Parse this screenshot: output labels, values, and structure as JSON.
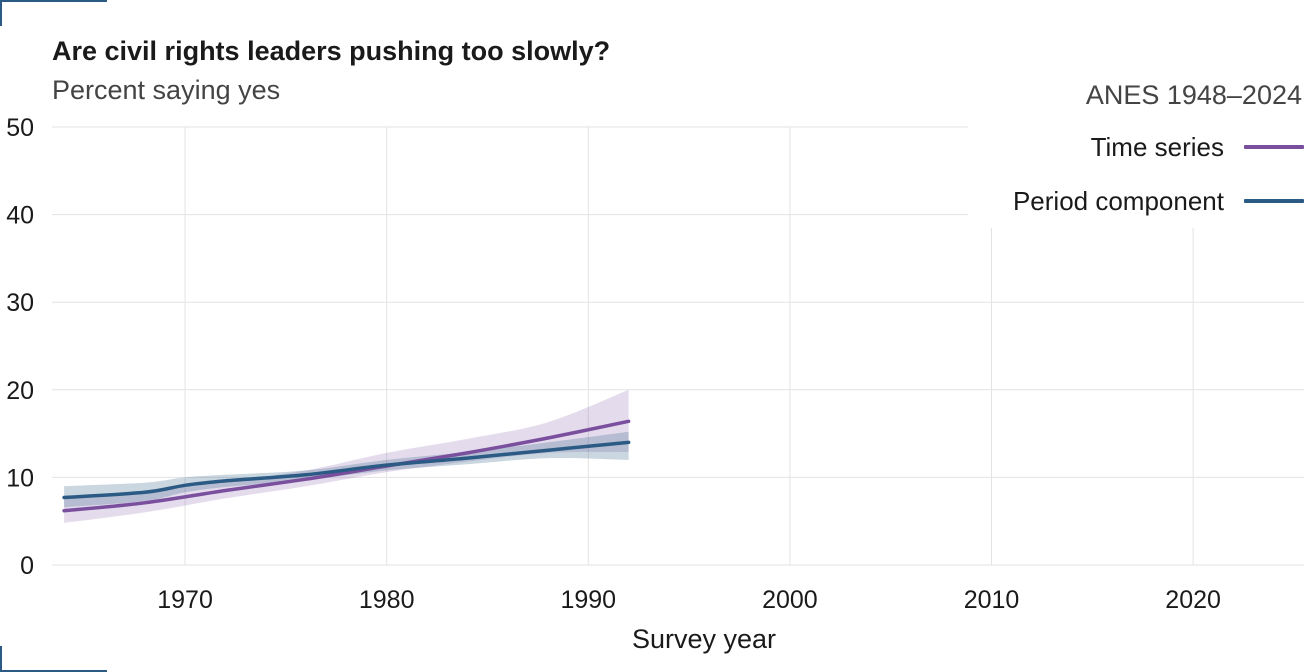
{
  "header": {
    "title": "Are civil rights leaders pushing too slowly?",
    "subtitle": "Percent saying yes"
  },
  "legend": {
    "title": "ANES 1948–2024",
    "items": [
      {
        "label": "Time series",
        "color": "#7a4f9e"
      },
      {
        "label": "Period component",
        "color": "#2b5b84"
      }
    ]
  },
  "chart_data": {
    "type": "line",
    "xlabel": "Survey year",
    "ylabel": "",
    "xlim": [
      1963.4,
      2025.5
    ],
    "ylim": [
      0,
      50
    ],
    "x_ticks": [
      1970,
      1980,
      1990,
      2000,
      2010,
      2020
    ],
    "y_ticks": [
      0,
      10,
      20,
      30,
      40,
      50
    ],
    "grid": true,
    "legend_position": "top-right",
    "series": [
      {
        "name": "Time series",
        "color": "#7a4f9e",
        "band_opacity": 0.2,
        "x": [
          1964,
          1968,
          1972,
          1976,
          1980,
          1984,
          1988,
          1992
        ],
        "y": [
          6.2,
          7.1,
          8.5,
          9.8,
          11.3,
          12.8,
          14.5,
          16.4
        ],
        "lower": [
          4.8,
          6.0,
          7.6,
          9.0,
          10.6,
          11.8,
          12.8,
          12.9
        ],
        "upper": [
          7.6,
          8.3,
          9.5,
          10.8,
          12.8,
          14.4,
          16.3,
          20.0
        ]
      },
      {
        "name": "Period component",
        "color": "#2b5b84",
        "band_opacity": 0.25,
        "x": [
          1964,
          1968,
          1970,
          1972,
          1976,
          1980,
          1984,
          1988,
          1992
        ],
        "y": [
          7.7,
          8.3,
          9.1,
          9.6,
          10.3,
          11.4,
          12.2,
          13.1,
          14.0
        ],
        "lower": [
          6.6,
          7.3,
          8.3,
          8.9,
          9.7,
          10.8,
          11.5,
          12.2,
          12.0
        ],
        "upper": [
          9.0,
          9.4,
          10.0,
          10.3,
          10.8,
          12.0,
          12.9,
          14.0,
          15.2
        ]
      }
    ]
  }
}
